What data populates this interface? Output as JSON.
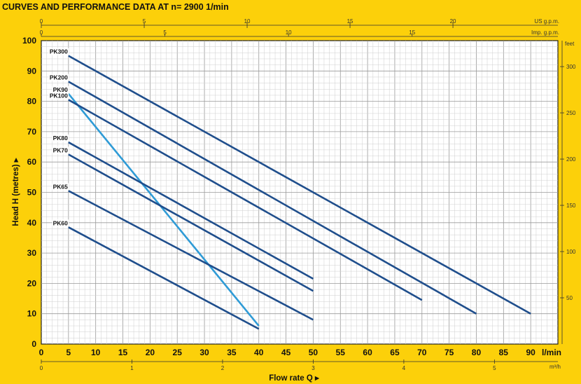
{
  "chart_data": {
    "type": "line",
    "title": "CURVES AND PERFORMANCE DATA AT n= 2900  1/min",
    "xlabel": "Flow rate  Q ▸",
    "ylabel": "Head  H  (metres) ▸",
    "x_unit_label": "l/min",
    "xlim": [
      0,
      95
    ],
    "ylim": [
      0,
      100
    ],
    "x_ticks": [
      0,
      5,
      10,
      15,
      20,
      25,
      30,
      35,
      40,
      45,
      50,
      55,
      60,
      65,
      70,
      75,
      80,
      85,
      90
    ],
    "y_ticks": [
      0,
      10,
      20,
      30,
      40,
      50,
      60,
      70,
      80,
      90,
      100
    ],
    "grid": true,
    "secondary_axes": {
      "bottom_m3h": {
        "label": "m³/h",
        "ticks": [
          "0",
          "1",
          "2",
          "3",
          "4",
          "5"
        ]
      },
      "top_us_gpm": {
        "label": "US g.p.m.",
        "ticks": [
          "0",
          "5",
          "10",
          "15",
          "20"
        ]
      },
      "top_imp_gpm": {
        "label": "Imp. g.p.m.",
        "ticks": [
          "0",
          "5",
          "10",
          "15"
        ]
      },
      "right_feet": {
        "label": "feet",
        "ticks": [
          "50",
          "100",
          "150",
          "200",
          "250",
          "300"
        ]
      }
    },
    "series": [
      {
        "name": "PK300",
        "color": "#1f4e8c",
        "x": [
          5,
          90
        ],
        "y": [
          95,
          10
        ]
      },
      {
        "name": "PK200",
        "color": "#1f4e8c",
        "x": [
          5,
          80
        ],
        "y": [
          86.5,
          10
        ]
      },
      {
        "name": "PK90",
        "color": "#2f9bd6",
        "x": [
          5,
          40
        ],
        "y": [
          82.5,
          6
        ]
      },
      {
        "name": "PK100",
        "color": "#1f4e8c",
        "x": [
          5,
          70
        ],
        "y": [
          80.5,
          14.5
        ]
      },
      {
        "name": "PK80",
        "color": "#1f4e8c",
        "x": [
          5,
          50
        ],
        "y": [
          66.5,
          21.5
        ]
      },
      {
        "name": "PK70",
        "color": "#1f4e8c",
        "x": [
          5,
          50
        ],
        "y": [
          62.5,
          17.5
        ]
      },
      {
        "name": "PK65",
        "color": "#1f4e8c",
        "x": [
          5,
          50
        ],
        "y": [
          50.5,
          8
        ]
      },
      {
        "name": "PK60",
        "color": "#1f4e8c",
        "x": [
          5,
          40
        ],
        "y": [
          38.5,
          5
        ]
      }
    ]
  }
}
